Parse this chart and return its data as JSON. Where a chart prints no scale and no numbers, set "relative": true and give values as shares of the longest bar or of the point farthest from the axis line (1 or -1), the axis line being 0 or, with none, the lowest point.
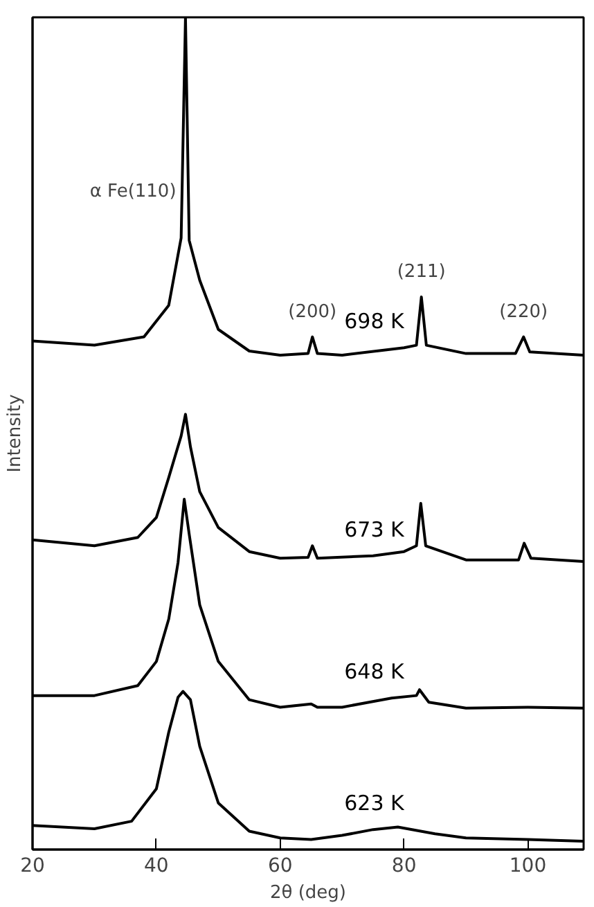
{
  "chart_data": {
    "type": "line",
    "relative": true,
    "xlabel": "2θ (deg)",
    "ylabel": "Intensity",
    "xlim": [
      20,
      109
    ],
    "xticks": [
      20,
      40,
      60,
      80,
      100
    ],
    "grid": false,
    "marker": "none",
    "line_style": "solid",
    "series": [
      {
        "name": "698 K",
        "color": "#000000",
        "x": [
          20,
          30,
          38,
          42,
          44,
          44.7,
          45.3,
          47,
          50,
          55,
          60,
          64.5,
          65.2,
          66,
          70,
          80,
          82,
          82.8,
          83.6,
          90,
          98,
          99.3,
          100.3,
          109
        ],
        "values": [
          0.611,
          0.606,
          0.616,
          0.654,
          0.735,
          1.0,
          0.732,
          0.684,
          0.625,
          0.599,
          0.594,
          0.596,
          0.616,
          0.596,
          0.594,
          0.603,
          0.606,
          0.664,
          0.606,
          0.596,
          0.596,
          0.616,
          0.598,
          0.594
        ]
      },
      {
        "name": "673 K",
        "color": "#000000",
        "x": [
          20,
          30,
          37,
          40,
          42,
          44,
          44.7,
          45.5,
          47,
          50,
          55,
          60,
          64.5,
          65.2,
          66,
          75,
          80,
          82,
          82.7,
          83.5,
          90,
          98.5,
          99.4,
          100.5,
          109
        ],
        "values": [
          0.372,
          0.365,
          0.375,
          0.399,
          0.447,
          0.497,
          0.523,
          0.484,
          0.43,
          0.387,
          0.358,
          0.35,
          0.351,
          0.365,
          0.35,
          0.353,
          0.358,
          0.365,
          0.416,
          0.365,
          0.348,
          0.348,
          0.368,
          0.35,
          0.346
        ]
      },
      {
        "name": "648 K",
        "color": "#000000",
        "x": [
          20,
          30,
          37,
          40,
          42,
          43.5,
          44.5,
          45.3,
          47,
          50,
          55,
          60,
          65,
          66,
          70,
          78,
          82,
          82.5,
          84,
          90,
          100,
          109
        ],
        "values": [
          0.185,
          0.185,
          0.197,
          0.226,
          0.277,
          0.345,
          0.421,
          0.379,
          0.294,
          0.226,
          0.18,
          0.171,
          0.175,
          0.171,
          0.171,
          0.182,
          0.185,
          0.192,
          0.177,
          0.17,
          0.171,
          0.17
        ]
      },
      {
        "name": "623 K",
        "color": "#000000",
        "x": [
          20,
          30,
          36,
          40,
          42,
          43.5,
          44.3,
          45.5,
          47,
          50,
          55,
          60,
          65,
          70,
          75,
          79,
          85,
          90,
          100,
          109
        ],
        "values": [
          0.029,
          0.025,
          0.034,
          0.073,
          0.141,
          0.183,
          0.19,
          0.18,
          0.124,
          0.056,
          0.022,
          0.014,
          0.012,
          0.017,
          0.024,
          0.027,
          0.019,
          0.014,
          0.012,
          0.01
        ]
      }
    ],
    "annotations": [
      {
        "text": "α Fe(110)",
        "x": 44.1,
        "y": 0.79
      },
      {
        "text": "(200)",
        "x": 65.2,
        "y": 0.616
      },
      {
        "text": "(211)",
        "x": 82.8,
        "y": 0.664
      },
      {
        "text": "(220)",
        "x": 99.3,
        "y": 0.616
      }
    ]
  }
}
